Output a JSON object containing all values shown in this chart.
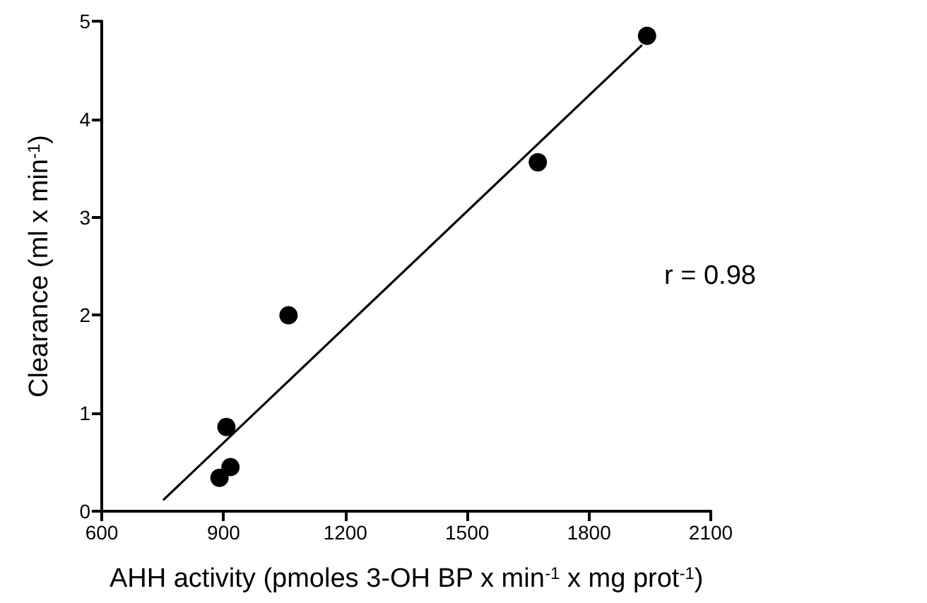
{
  "chart_data": {
    "type": "scatter",
    "xlabel": "AHH activity (pmoles 3-OH BP x min$^{-1}$ x mg prot$^{-1}$)",
    "ylabel": "Clearance (ml x min$^{-1}$)",
    "series": [
      {
        "color": "#000000",
        "marker": "circle",
        "x": [
          890,
          917,
          907,
          1060,
          1674,
          1943
        ],
        "values": [
          0.34,
          0.45,
          0.86,
          2.0,
          3.56,
          4.85
        ]
      },
      {
        "type": "line",
        "color": "#000000",
        "marker": "none",
        "x": [
          753,
          1929
        ],
        "values": [
          0.12,
          4.75
        ]
      }
    ],
    "xlim": [
      600,
      2100
    ],
    "xticks": [
      600,
      900,
      1200,
      1500,
      1800,
      2100
    ],
    "ylim": [
      0,
      5
    ],
    "yticks": [
      0,
      1,
      2,
      3,
      4,
      5
    ],
    "grid": false,
    "annotations": [
      "r = 0.98"
    ]
  }
}
